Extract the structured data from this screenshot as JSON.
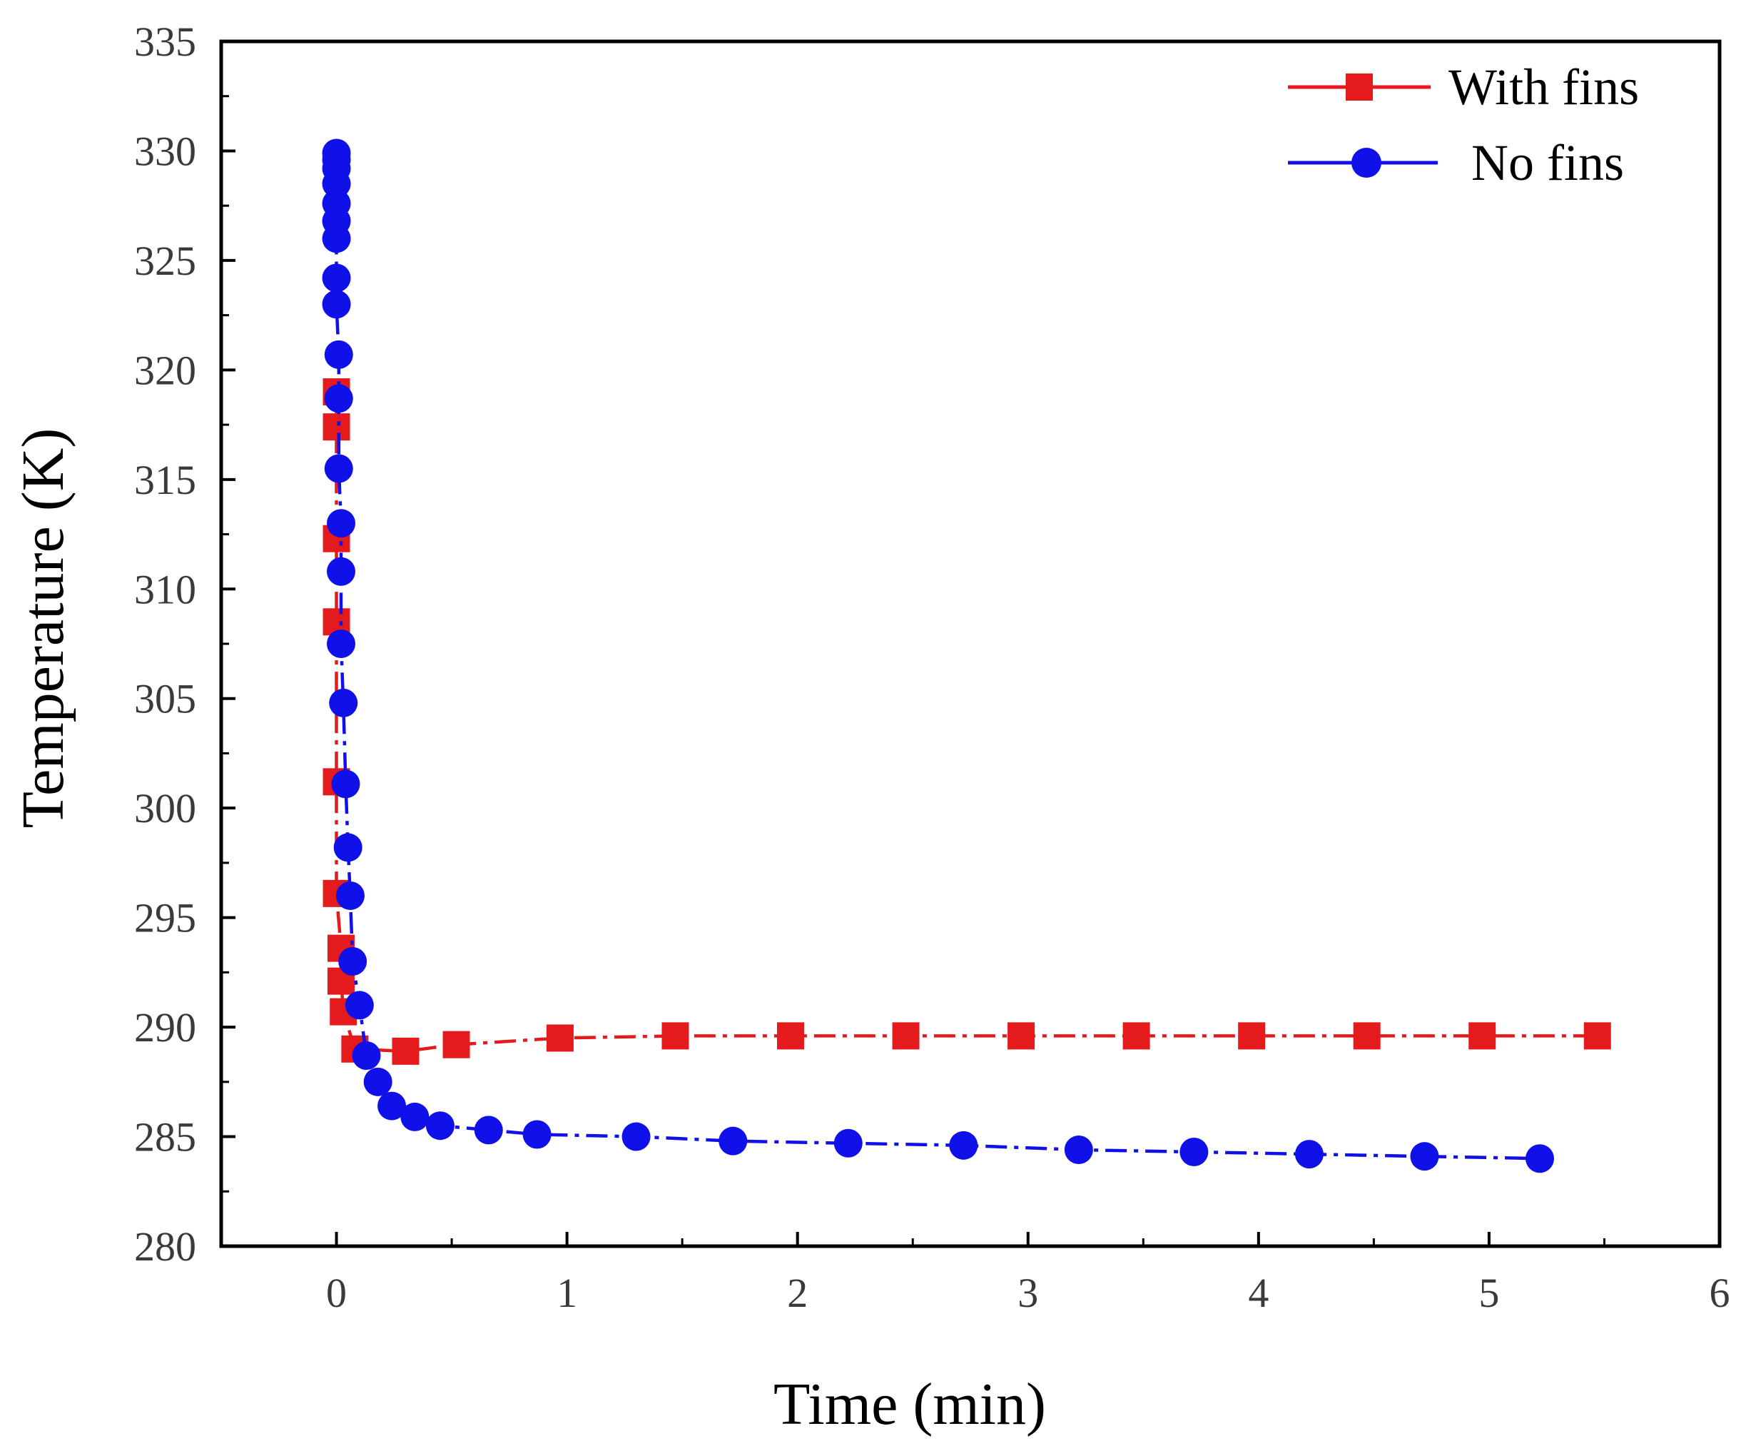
{
  "chart_data": {
    "type": "line",
    "title": "",
    "xlabel": "Time (min)",
    "ylabel": "Temperature (K)",
    "xlim": [
      -0.5,
      6
    ],
    "ylim": [
      280,
      335
    ],
    "xticks": [
      0,
      1,
      2,
      3,
      4,
      5,
      6
    ],
    "yticks": [
      280,
      285,
      290,
      295,
      300,
      305,
      310,
      315,
      320,
      325,
      330,
      335
    ],
    "xtick_labels": [
      "0",
      "1",
      "2",
      "3",
      "4",
      "5",
      "6"
    ],
    "ytick_labels": [
      "280",
      "285",
      "290",
      "295",
      "300",
      "305",
      "310",
      "315",
      "320",
      "325",
      "330",
      "335"
    ],
    "grid": false,
    "legend_position": "top-right",
    "series": [
      {
        "name": "With fins",
        "color": "#e41a1c",
        "marker": "square",
        "line": "dash-dot",
        "x": [
          0.0,
          0.0,
          0.0,
          0.0,
          0.0,
          0.0,
          0.02,
          0.02,
          0.03,
          0.08,
          0.3,
          0.52,
          0.97,
          1.47,
          1.97,
          2.47,
          2.97,
          3.47,
          3.97,
          4.47,
          4.97,
          5.47
        ],
        "y": [
          319.0,
          317.4,
          312.3,
          308.5,
          301.2,
          296.1,
          293.6,
          292.1,
          290.7,
          289.0,
          288.9,
          289.2,
          289.5,
          289.6,
          289.6,
          289.6,
          289.6,
          289.6,
          289.6,
          289.6,
          289.6,
          289.6
        ]
      },
      {
        "name": "No fins",
        "color": "#1010e8",
        "marker": "circle",
        "line": "dash-dot",
        "x": [
          0.0,
          0.0,
          0.0,
          0.0,
          0.0,
          0.0,
          0.0,
          0.0,
          0.0,
          0.01,
          0.01,
          0.01,
          0.02,
          0.02,
          0.02,
          0.03,
          0.04,
          0.05,
          0.06,
          0.07,
          0.1,
          0.13,
          0.18,
          0.24,
          0.34,
          0.45,
          0.66,
          0.87,
          1.3,
          1.72,
          2.22,
          2.72,
          3.22,
          3.72,
          4.22,
          4.72,
          5.22
        ],
        "y": [
          329.9,
          329.6,
          329.2,
          328.5,
          327.6,
          326.8,
          326.0,
          324.2,
          323.0,
          320.7,
          318.7,
          315.5,
          313.0,
          310.8,
          307.5,
          304.8,
          301.1,
          298.2,
          296.0,
          293.0,
          291.0,
          288.7,
          287.5,
          286.4,
          285.9,
          285.5,
          285.3,
          285.1,
          285.0,
          284.8,
          284.7,
          284.6,
          284.4,
          284.3,
          284.2,
          284.1,
          284.0
        ]
      }
    ]
  }
}
